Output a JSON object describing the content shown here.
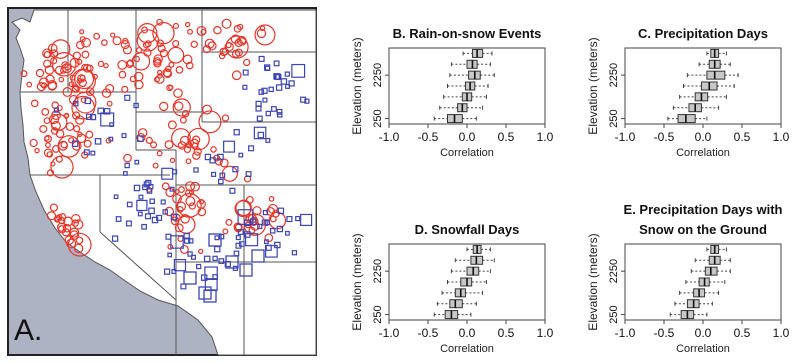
{
  "panel_a": {
    "label": "A.",
    "colors": {
      "ocean": "#aeb3c4",
      "land": "#ffffff",
      "border": "#555555",
      "red_marker": "#e8362a",
      "blue_marker": "#3c45b4"
    },
    "icon": "scatter-map"
  },
  "colors": {
    "box_fill": "#c8c8c8",
    "box_stroke": "#333333",
    "whisker": "#444444"
  },
  "chart_data": [
    {
      "type": "box",
      "panel": "B",
      "title": "B. Rain-on-snow Events",
      "xlabel": "Correlation",
      "ylabel": "Elevation (meters)",
      "xlim": [
        -1.0,
        1.0
      ],
      "xticks": [
        "-1.0",
        "-0.5",
        "0.0",
        "0.5",
        "1.0"
      ],
      "yticks": [
        "250",
        "2250"
      ],
      "boxes": [
        {
          "elev": 3250,
          "min": -0.05,
          "q1": 0.07,
          "med": 0.13,
          "q3": 0.2,
          "max": 0.32
        },
        {
          "elev": 2750,
          "min": -0.2,
          "q1": 0.0,
          "med": 0.07,
          "q3": 0.13,
          "max": 0.3
        },
        {
          "elev": 2250,
          "min": -0.22,
          "q1": 0.02,
          "med": 0.1,
          "q3": 0.17,
          "max": 0.35
        },
        {
          "elev": 1750,
          "min": -0.25,
          "q1": -0.02,
          "med": 0.04,
          "q3": 0.1,
          "max": 0.27
        },
        {
          "elev": 1250,
          "min": -0.3,
          "q1": -0.06,
          "med": 0.0,
          "q3": 0.06,
          "max": 0.25
        },
        {
          "elev": 750,
          "min": -0.35,
          "q1": -0.12,
          "med": -0.06,
          "q3": 0.0,
          "max": 0.2
        },
        {
          "elev": 250,
          "min": -0.42,
          "q1": -0.25,
          "med": -0.16,
          "q3": -0.06,
          "max": 0.12
        }
      ]
    },
    {
      "type": "box",
      "panel": "C",
      "title": "C. Precipitation Days",
      "xlabel": "Correlation",
      "ylabel": "Elevation (meters)",
      "xlim": [
        -1.0,
        1.0
      ],
      "xticks": [
        "-1.0",
        "-0.5",
        "0.0",
        "0.5",
        "1.0"
      ],
      "yticks": [
        "250",
        "2250"
      ],
      "boxes": [
        {
          "elev": 3250,
          "min": 0.05,
          "q1": 0.1,
          "med": 0.15,
          "q3": 0.2,
          "max": 0.3
        },
        {
          "elev": 2750,
          "min": -0.05,
          "q1": 0.08,
          "med": 0.15,
          "q3": 0.22,
          "max": 0.35
        },
        {
          "elev": 2250,
          "min": -0.2,
          "q1": 0.05,
          "med": 0.15,
          "q3": 0.28,
          "max": 0.45
        },
        {
          "elev": 1750,
          "min": -0.25,
          "q1": -0.02,
          "med": 0.08,
          "q3": 0.18,
          "max": 0.4
        },
        {
          "elev": 1250,
          "min": -0.3,
          "q1": -0.1,
          "med": -0.02,
          "q3": 0.06,
          "max": 0.3
        },
        {
          "elev": 750,
          "min": -0.38,
          "q1": -0.18,
          "med": -0.1,
          "q3": -0.02,
          "max": 0.2
        },
        {
          "elev": 250,
          "min": -0.45,
          "q1": -0.32,
          "med": -0.22,
          "q3": -0.1,
          "max": 0.05
        }
      ]
    },
    {
      "type": "box",
      "panel": "D",
      "title": "D. Snowfall Days",
      "xlabel": "Correlation",
      "ylabel": "Elevation (meters)",
      "xlim": [
        -1.0,
        1.0
      ],
      "xticks": [
        "-1.0",
        "-0.5",
        "0.0",
        "0.5",
        "1.0"
      ],
      "yticks": [
        "250",
        "2250"
      ],
      "boxes": [
        {
          "elev": 3250,
          "min": 0.0,
          "q1": 0.08,
          "med": 0.13,
          "q3": 0.18,
          "max": 0.3
        },
        {
          "elev": 2750,
          "min": -0.15,
          "q1": 0.05,
          "med": 0.12,
          "q3": 0.2,
          "max": 0.35
        },
        {
          "elev": 2250,
          "min": -0.2,
          "q1": 0.0,
          "med": 0.08,
          "q3": 0.15,
          "max": 0.3
        },
        {
          "elev": 1750,
          "min": -0.25,
          "q1": -0.08,
          "med": 0.0,
          "q3": 0.06,
          "max": 0.25
        },
        {
          "elev": 1250,
          "min": -0.32,
          "q1": -0.15,
          "med": -0.08,
          "q3": -0.02,
          "max": 0.2
        },
        {
          "elev": 750,
          "min": -0.38,
          "q1": -0.22,
          "med": -0.15,
          "q3": -0.06,
          "max": 0.12
        },
        {
          "elev": 250,
          "min": -0.42,
          "q1": -0.28,
          "med": -0.2,
          "q3": -0.12,
          "max": 0.05
        }
      ]
    },
    {
      "type": "box",
      "panel": "E",
      "title": [
        "E. Precipitation Days with",
        "Snow on the Ground"
      ],
      "xlabel": "Correlation",
      "ylabel": "Elevation (meters)",
      "xlim": [
        -1.0,
        1.0
      ],
      "xticks": [
        "-1.0",
        "-0.5",
        "0.0",
        "0.5",
        "1.0"
      ],
      "yticks": [
        "250",
        "2250"
      ],
      "boxes": [
        {
          "elev": 3250,
          "min": 0.05,
          "q1": 0.1,
          "med": 0.15,
          "q3": 0.2,
          "max": 0.3
        },
        {
          "elev": 2750,
          "min": -0.1,
          "q1": 0.08,
          "med": 0.15,
          "q3": 0.22,
          "max": 0.35
        },
        {
          "elev": 2250,
          "min": -0.15,
          "q1": 0.03,
          "med": 0.1,
          "q3": 0.18,
          "max": 0.35
        },
        {
          "elev": 1750,
          "min": -0.22,
          "q1": -0.05,
          "med": 0.02,
          "q3": 0.08,
          "max": 0.28
        },
        {
          "elev": 1250,
          "min": -0.3,
          "q1": -0.12,
          "med": -0.05,
          "q3": 0.02,
          "max": 0.2
        },
        {
          "elev": 750,
          "min": -0.36,
          "q1": -0.2,
          "med": -0.12,
          "q3": -0.05,
          "max": 0.12
        },
        {
          "elev": 250,
          "min": -0.42,
          "q1": -0.28,
          "med": -0.2,
          "q3": -0.12,
          "max": 0.05
        }
      ]
    }
  ]
}
